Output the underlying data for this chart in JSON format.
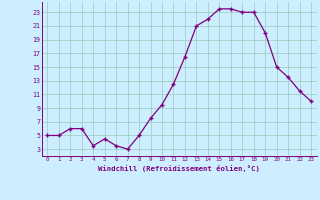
{
  "x": [
    0,
    1,
    2,
    3,
    4,
    5,
    6,
    7,
    8,
    9,
    10,
    11,
    12,
    13,
    14,
    15,
    16,
    17,
    18,
    19,
    20,
    21,
    22,
    23
  ],
  "y": [
    5,
    5,
    6,
    6,
    3.5,
    4.5,
    3.5,
    3,
    5,
    7.5,
    9.5,
    12.5,
    16.5,
    21,
    22,
    23.5,
    23.5,
    23,
    23,
    20,
    15,
    13.5,
    11.5,
    10
  ],
  "line_color": "#800080",
  "marker_color": "#800080",
  "bg_color": "#cceeff",
  "grid_color": "#99ccbb",
  "xlabel": "Windchill (Refroidissement éolien,°C)",
  "yticks": [
    3,
    5,
    7,
    9,
    11,
    13,
    15,
    17,
    19,
    21,
    23
  ],
  "xticks": [
    0,
    1,
    2,
    3,
    4,
    5,
    6,
    7,
    8,
    9,
    10,
    11,
    12,
    13,
    14,
    15,
    16,
    17,
    18,
    19,
    20,
    21,
    22,
    23
  ],
  "xlim": [
    -0.5,
    23.5
  ],
  "ylim": [
    2,
    24.5
  ]
}
